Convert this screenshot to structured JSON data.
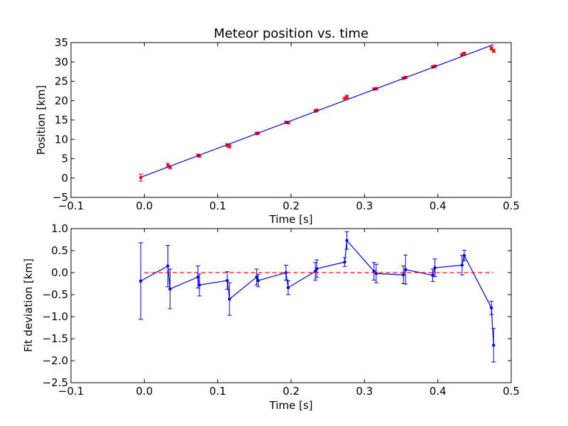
{
  "chart_data": [
    {
      "type": "scatter",
      "title": "Meteor position vs. time",
      "xlabel": "Time [s]",
      "ylabel": "Position [km]",
      "xlim": [
        -0.1,
        0.5
      ],
      "ylim": [
        -5,
        35
      ],
      "xticks": [
        "−0.1",
        "0.0",
        "0.1",
        "0.2",
        "0.3",
        "0.4",
        "0.5"
      ],
      "yticks": [
        "−5",
        "0",
        "5",
        "10",
        "15",
        "20",
        "25",
        "30",
        "35"
      ],
      "grid": false,
      "series": [
        {
          "kind": "errorbar-points",
          "color": "#ff0000",
          "x": [
            -0.005,
            0.032,
            0.035,
            0.073,
            0.075,
            0.113,
            0.116,
            0.153,
            0.155,
            0.193,
            0.196,
            0.233,
            0.235,
            0.273,
            0.276,
            0.313,
            0.316,
            0.353,
            0.356,
            0.393,
            0.396,
            0.433,
            0.436,
            0.473,
            0.476
          ],
          "y": [
            0.1,
            3.3,
            2.8,
            5.9,
            5.7,
            8.5,
            8.2,
            11.5,
            11.6,
            14.4,
            14.3,
            17.3,
            17.5,
            20.6,
            21.0,
            23.0,
            23.1,
            25.8,
            26.0,
            28.7,
            28.9,
            31.9,
            32.2,
            33.5,
            32.9
          ],
          "yerr": [
            0.9,
            0.5,
            0.4,
            0.3,
            0.3,
            0.4,
            0.4,
            0.3,
            0.3,
            0.3,
            0.3,
            0.3,
            0.3,
            0.3,
            0.4,
            0.3,
            0.3,
            0.3,
            0.3,
            0.3,
            0.3,
            0.3,
            0.3,
            0.4,
            0.4
          ]
        },
        {
          "kind": "fit-line",
          "color": "#0000ff",
          "x": [
            -0.005,
            0.476
          ],
          "y": [
            0.2,
            34.5
          ]
        }
      ]
    },
    {
      "type": "line",
      "title": "",
      "xlabel": "Time [s]",
      "ylabel": "Fit deviation [km]",
      "xlim": [
        -0.1,
        0.5
      ],
      "ylim": [
        -2.5,
        1.0
      ],
      "xticks": [
        "−0.1",
        "0.0",
        "0.1",
        "0.2",
        "0.3",
        "0.4",
        "0.5"
      ],
      "yticks": [
        "−2.5",
        "−2.0",
        "−1.5",
        "−1.0",
        "−0.5",
        "0.0",
        "0.5",
        "1.0"
      ],
      "grid": false,
      "series": [
        {
          "kind": "errorbar-line",
          "color": "#0000ff",
          "x": [
            -0.005,
            0.032,
            0.035,
            0.073,
            0.075,
            0.113,
            0.116,
            0.153,
            0.155,
            0.193,
            0.196,
            0.233,
            0.235,
            0.273,
            0.276,
            0.313,
            0.316,
            0.353,
            0.356,
            0.393,
            0.396,
            0.433,
            0.436,
            0.473,
            0.476
          ],
          "y": [
            -0.19,
            0.15,
            -0.37,
            -0.1,
            -0.28,
            -0.18,
            -0.6,
            -0.1,
            -0.18,
            0.0,
            -0.34,
            0.03,
            0.09,
            0.24,
            0.73,
            0.03,
            -0.02,
            -0.05,
            0.07,
            -0.06,
            0.11,
            0.17,
            0.39,
            -0.8,
            -1.65
          ],
          "yerr": [
            0.87,
            0.47,
            0.45,
            0.25,
            0.25,
            0.2,
            0.37,
            0.18,
            0.14,
            0.17,
            0.16,
            0.2,
            0.2,
            0.1,
            0.2,
            0.2,
            0.21,
            0.2,
            0.33,
            0.14,
            0.2,
            0.22,
            0.12,
            0.15,
            0.38
          ]
        },
        {
          "kind": "zero-line",
          "color": "#ff0000",
          "style": "dashed",
          "x": [
            0.0,
            0.476
          ],
          "y": [
            0.0,
            0.0
          ]
        }
      ]
    }
  ]
}
